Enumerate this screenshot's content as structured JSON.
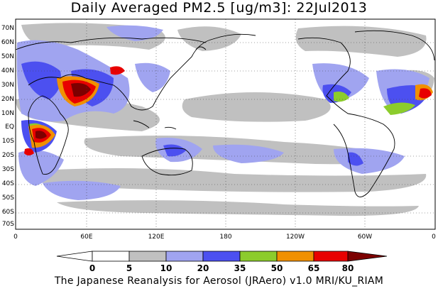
{
  "title": "Daily Averaged PM2.5 [ug/m3]: 22Jul2013",
  "footer": "The Japanese Reanalysis for Aerosol (JRAero) v1.0 MRI/KU_RIAM",
  "map": {
    "lat_labels": [
      "70N",
      "60N",
      "50N",
      "40N",
      "30N",
      "20N",
      "10N",
      "EQ",
      "10S",
      "20S",
      "30S",
      "40S",
      "50S",
      "60S",
      "70S"
    ],
    "lon_labels": [
      "0",
      "60E",
      "120E",
      "180",
      "120W",
      "60W",
      "0"
    ]
  },
  "colorbar": {
    "labels": [
      "0",
      "5",
      "10",
      "20",
      "35",
      "50",
      "65",
      "80"
    ],
    "colors": [
      "#ffffff",
      "#c0c0c0",
      "#a0a4f0",
      "#4c50f0",
      "#8ccc2c",
      "#f09000",
      "#e80000",
      "#7c0000"
    ]
  },
  "colors": {
    "gray": "#c0c0c0",
    "lightblue": "#a0a4f0",
    "blue": "#4c50f0",
    "green": "#8ccc2c",
    "orange": "#f09000",
    "red": "#e80000",
    "darkred": "#7c0000"
  }
}
